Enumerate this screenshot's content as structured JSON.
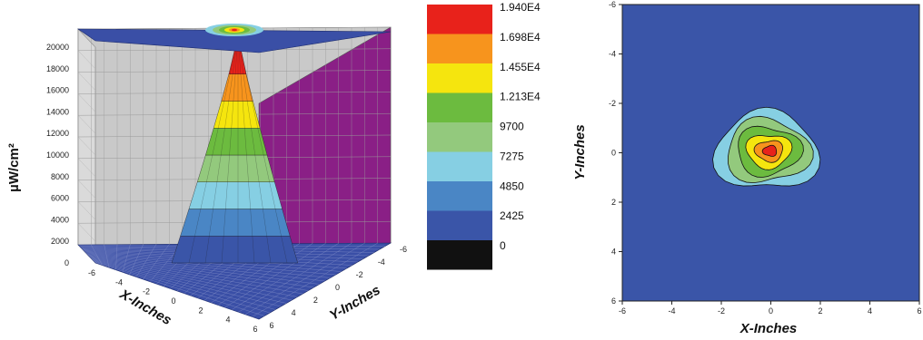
{
  "chart_data": [
    {
      "type": "surface3d",
      "ylabel": "µW/cm²",
      "xlabel": "X-Inches",
      "depth_label": "Y-Inches",
      "z_ticks": [
        "0",
        "2000",
        "4000",
        "6000",
        "8000",
        "10000",
        "12000",
        "14000",
        "16000",
        "18000",
        "20000"
      ],
      "zlim": [
        0,
        20000
      ],
      "x_ticks": [
        "-6",
        "-4",
        "-2",
        "0",
        "2",
        "4",
        "6"
      ],
      "y_ticks": [
        "-6",
        "-4",
        "-2",
        "0",
        "2",
        "4",
        "6"
      ],
      "xlim": [
        -6,
        6
      ],
      "ylim": [
        -6,
        6
      ],
      "peak": {
        "x": 0,
        "y": 0,
        "z": 19400
      },
      "grid": true,
      "colors": {
        "back_wall": "#c9c9c9",
        "side_wall": "#8a1f86",
        "floor": "#3a4fa6",
        "top_plane": "#3a4fa6"
      }
    },
    {
      "type": "colorbar",
      "levels": [
        "1.940E4",
        "1.698E4",
        "1.455E4",
        "1.213E4",
        "9700",
        "7275",
        "4850",
        "2425",
        "0"
      ],
      "colors": [
        "#e8221b",
        "#f7941d",
        "#f5e50e",
        "#6cbb3f",
        "#93c97d",
        "#86cfe3",
        "#4a86c5",
        "#3a55a8",
        "#111111"
      ]
    },
    {
      "type": "contour",
      "xlabel": "X-Inches",
      "ylabel": "Y-Inches",
      "x_ticks": [
        "-6",
        "-4",
        "-2",
        "0",
        "2",
        "4",
        "6"
      ],
      "y_ticks": [
        "-6",
        "-4",
        "-2",
        "0",
        "2",
        "4",
        "6"
      ],
      "xlim": [
        -6,
        6
      ],
      "ylim": [
        6,
        -6
      ],
      "center": {
        "x": 0,
        "y": 0
      },
      "background": "#3a55a8",
      "contour_levels": [
        {
          "level": 2425,
          "color": "#86cfe3",
          "r": 1.85
        },
        {
          "level": 4850,
          "color": "#93c97d",
          "r": 1.5
        },
        {
          "level": 7275,
          "color": "#6cbb3f",
          "r": 1.15
        },
        {
          "level": 9700,
          "color": "#f5e50e",
          "r": 0.8
        },
        {
          "level": 12130,
          "color": "#f7941d",
          "r": 0.5
        },
        {
          "level": 16980,
          "color": "#e8221b",
          "r": 0.25
        }
      ]
    }
  ]
}
